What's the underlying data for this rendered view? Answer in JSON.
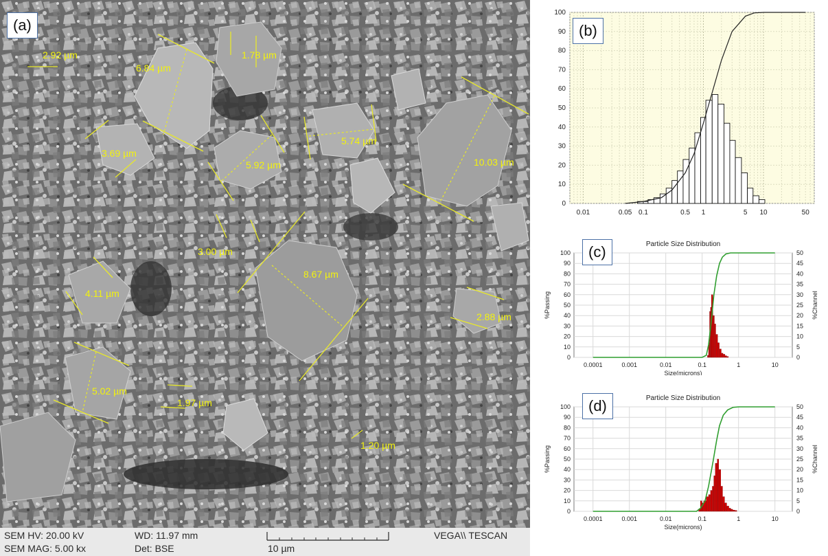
{
  "panels": {
    "a": {
      "label": "(a)",
      "measurements": [
        "2.92 µm",
        "6.84 µm",
        "1.78 µm",
        "3.69 µm",
        "5.92 µm",
        "5.74 µm",
        "10.03 µm",
        "3.00 µm",
        "8.67 µm",
        "4.11 µm",
        "2.88 µm",
        "5.02 µm",
        "1.97 µm",
        "1.20 µm"
      ],
      "footer": {
        "hv": "SEM HV: 20.00 kV",
        "mag": "SEM MAG: 5.00 kx",
        "wd": "WD: 11.97 mm",
        "det": "Det: BSE",
        "scale": "10 µm",
        "brand": "VEGA\\\\ TESCAN"
      }
    },
    "b": {
      "label": "(b)"
    },
    "c": {
      "label": "(c)"
    },
    "d": {
      "label": "(d)"
    }
  },
  "chart_data": [
    {
      "panel": "b",
      "type": "bar",
      "xscale": "log",
      "x_ticks": [
        "0.01",
        "0.05",
        "0.1",
        "0.5",
        "1",
        "5",
        "10",
        "50"
      ],
      "y_ticks": [
        "0",
        "10",
        "20",
        "30",
        "40",
        "50",
        "60",
        "70",
        "80",
        "90",
        "100"
      ],
      "ylim": [
        0,
        100
      ],
      "xlim": [
        0.006,
        70
      ],
      "bins": {
        "x": [
          0.08,
          0.1,
          0.12,
          0.15,
          0.19,
          0.24,
          0.3,
          0.37,
          0.46,
          0.58,
          0.72,
          0.9,
          1.1,
          1.4,
          1.75,
          2.2,
          2.75,
          3.4,
          4.3,
          5.4,
          6.7,
          8.4
        ],
        "values": [
          1,
          1,
          2,
          3,
          5,
          8,
          12,
          17,
          23,
          29,
          37,
          45,
          54,
          57,
          52,
          42,
          33,
          24,
          16,
          8,
          4,
          2
        ]
      },
      "cumulative": {
        "x": [
          0.05,
          0.1,
          0.2,
          0.3,
          0.5,
          0.7,
          1,
          1.4,
          2,
          3,
          5,
          7,
          10,
          50
        ],
        "values": [
          0,
          1,
          3,
          7,
          16,
          26,
          42,
          58,
          75,
          90,
          98,
          99.7,
          100,
          100
        ]
      },
      "grid": true,
      "background": "#fdfce2"
    },
    {
      "panel": "c",
      "type": "bar",
      "title": "Particle Size Distribution",
      "xlabel": "Size(microns)",
      "ylabel_left": "%Passing",
      "ylabel_right": "%Channel",
      "xscale": "log",
      "x_ticks": [
        "0.0001",
        "0.001",
        "0.01",
        "0.1",
        "1",
        "10"
      ],
      "y_ticks_left": [
        "0",
        "10",
        "20",
        "30",
        "40",
        "50",
        "60",
        "70",
        "80",
        "90",
        "100"
      ],
      "y_ticks_right": [
        "0",
        "5",
        "10",
        "15",
        "20",
        "25",
        "30",
        "35",
        "40",
        "45",
        "50"
      ],
      "ylim_left": [
        0,
        100
      ],
      "ylim_right": [
        0,
        50
      ],
      "bins": {
        "x": [
          0.14,
          0.15,
          0.16,
          0.17,
          0.18,
          0.2,
          0.22,
          0.24,
          0.27,
          0.3,
          0.34,
          0.38,
          0.43,
          0.48
        ],
        "values": [
          1,
          7,
          22,
          24,
          30,
          20,
          16,
          11,
          7,
          4,
          2,
          1.5,
          0.8,
          0.4
        ]
      },
      "passing": {
        "x": [
          0.0001,
          0.1,
          0.13,
          0.15,
          0.18,
          0.21,
          0.25,
          0.3,
          0.36,
          0.45,
          0.6,
          1,
          10
        ],
        "values": [
          0,
          0,
          2,
          12,
          36,
          60,
          78,
          90,
          96,
          99,
          100,
          100,
          100
        ]
      },
      "colors": {
        "bars": "#d40000",
        "passing": "#2f9e2f",
        "title": "#1a1a8c",
        "right_axis": "#cc0000"
      }
    },
    {
      "panel": "d",
      "type": "bar",
      "title": "Particle Size Distribution",
      "xlabel": "Size(microns)",
      "ylabel_left": "%Passing",
      "ylabel_right": "%Channel",
      "xscale": "log",
      "x_ticks": [
        "0.0001",
        "0.001",
        "0.01",
        "0.1",
        "1",
        "10"
      ],
      "y_ticks_left": [
        "0",
        "10",
        "20",
        "30",
        "40",
        "50",
        "60",
        "70",
        "80",
        "90",
        "100"
      ],
      "y_ticks_right": [
        "0",
        "5",
        "10",
        "15",
        "20",
        "25",
        "30",
        "35",
        "40",
        "45",
        "50"
      ],
      "ylim_left": [
        0,
        100
      ],
      "ylim_right": [
        0,
        50
      ],
      "bins": {
        "x": [
          0.08,
          0.09,
          0.1,
          0.11,
          0.13,
          0.15,
          0.17,
          0.19,
          0.21,
          0.23,
          0.26,
          0.29,
          0.33,
          0.37,
          0.42,
          0.48,
          0.55,
          0.62,
          0.7,
          0.8
        ],
        "values": [
          1,
          5,
          4,
          5,
          7,
          8,
          10,
          12,
          17,
          23,
          25,
          20,
          12,
          7,
          4,
          2.5,
          1.5,
          1,
          0.6,
          0.4
        ]
      },
      "passing": {
        "x": [
          0.0001,
          0.07,
          0.09,
          0.12,
          0.15,
          0.2,
          0.25,
          0.3,
          0.38,
          0.5,
          0.7,
          1,
          10
        ],
        "values": [
          0,
          0,
          3,
          10,
          24,
          48,
          68,
          82,
          92,
          97,
          99.5,
          100,
          100
        ]
      },
      "colors": {
        "bars": "#d40000",
        "passing": "#2f9e2f",
        "title": "#1a1a8c",
        "right_axis": "#cc0000"
      }
    }
  ]
}
